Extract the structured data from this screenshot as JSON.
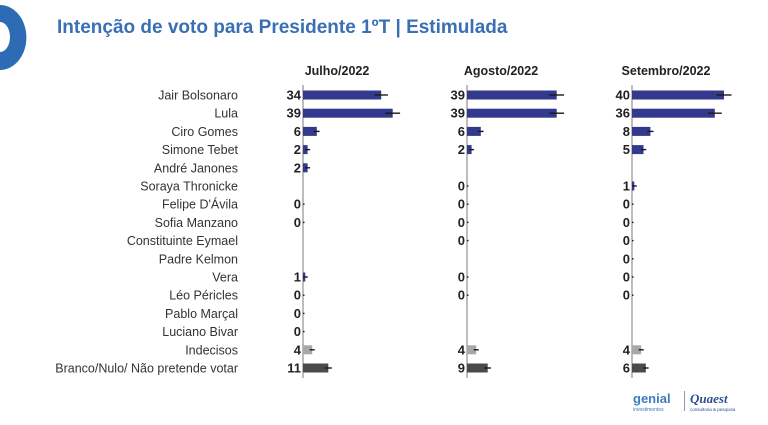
{
  "colors": {
    "accent": "#2e6bb5",
    "title": "#3a6fb5",
    "bar_candidate": "#33398c",
    "bar_undecided": "#a8a8a8",
    "bar_blank": "#4a4a4a"
  },
  "chart_data": {
    "type": "bar",
    "orientation": "horizontal",
    "title": "Intenção de voto para Presidente 1ºT | Estimulada",
    "categories": [
      "Jair Bolsonaro",
      "Lula",
      "Ciro Gomes",
      "Simone Tebet",
      "André Janones",
      "Soraya Thronicke",
      "Felipe D'Ávila",
      "Sofia Manzano",
      "Constituinte Eymael",
      "Padre Kelmon",
      "Vera",
      "Léo Péricles",
      "Pablo Marçal",
      "Luciano Bivar",
      "Indecisos",
      "Branco/Nulo/ Não pretende votar"
    ],
    "series": [
      {
        "name": "Julho/2022",
        "values": [
          34,
          39,
          6,
          2,
          2,
          null,
          0,
          0,
          null,
          null,
          1,
          0,
          0,
          0,
          4,
          11
        ]
      },
      {
        "name": "Agosto/2022",
        "values": [
          39,
          39,
          6,
          2,
          null,
          0,
          0,
          0,
          0,
          null,
          0,
          0,
          null,
          null,
          4,
          9
        ]
      },
      {
        "name": "Setembro/2022",
        "values": [
          40,
          36,
          8,
          5,
          null,
          1,
          0,
          0,
          0,
          0,
          0,
          0,
          null,
          null,
          4,
          6
        ]
      }
    ],
    "xlim": [
      0,
      40
    ],
    "grid": false,
    "error_bars": true
  },
  "logos": {
    "genial": "genial",
    "genial_sub": "investimentos",
    "quaest": "Quaest",
    "quaest_sub": "consultoria & pesquisa"
  }
}
